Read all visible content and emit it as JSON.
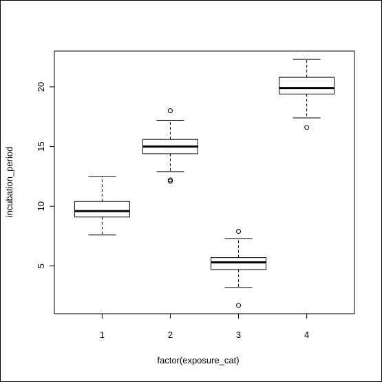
{
  "chart_data": {
    "type": "boxplot",
    "title": "",
    "xlabel": "factor(exposure_cat)",
    "ylabel": "incubation_period",
    "ylim": [
      1.0,
      23.0
    ],
    "y_ticks": [
      5,
      10,
      15,
      20
    ],
    "y_tick_labels": [
      "5",
      "10",
      "15",
      "20"
    ],
    "grid": false,
    "colors": {
      "box_fill": "#ffffff",
      "stroke": "#000000"
    },
    "categories": [
      "1",
      "2",
      "3",
      "4"
    ],
    "boxes": [
      {
        "category": "1",
        "whisker_low": 7.6,
        "q1": 9.1,
        "median": 9.6,
        "q3": 10.4,
        "whisker_high": 12.5,
        "outliers": []
      },
      {
        "category": "2",
        "whisker_low": 12.9,
        "q1": 14.4,
        "median": 15.0,
        "q3": 15.6,
        "whisker_high": 17.2,
        "outliers": [
          12.1,
          12.2,
          18.0
        ]
      },
      {
        "category": "3",
        "whisker_low": 3.2,
        "q1": 4.7,
        "median": 5.3,
        "q3": 5.7,
        "whisker_high": 7.3,
        "outliers": [
          1.7,
          7.9
        ]
      },
      {
        "category": "4",
        "whisker_low": 17.4,
        "q1": 19.4,
        "median": 19.9,
        "q3": 20.8,
        "whisker_high": 22.3,
        "outliers": [
          16.6
        ]
      }
    ]
  }
}
